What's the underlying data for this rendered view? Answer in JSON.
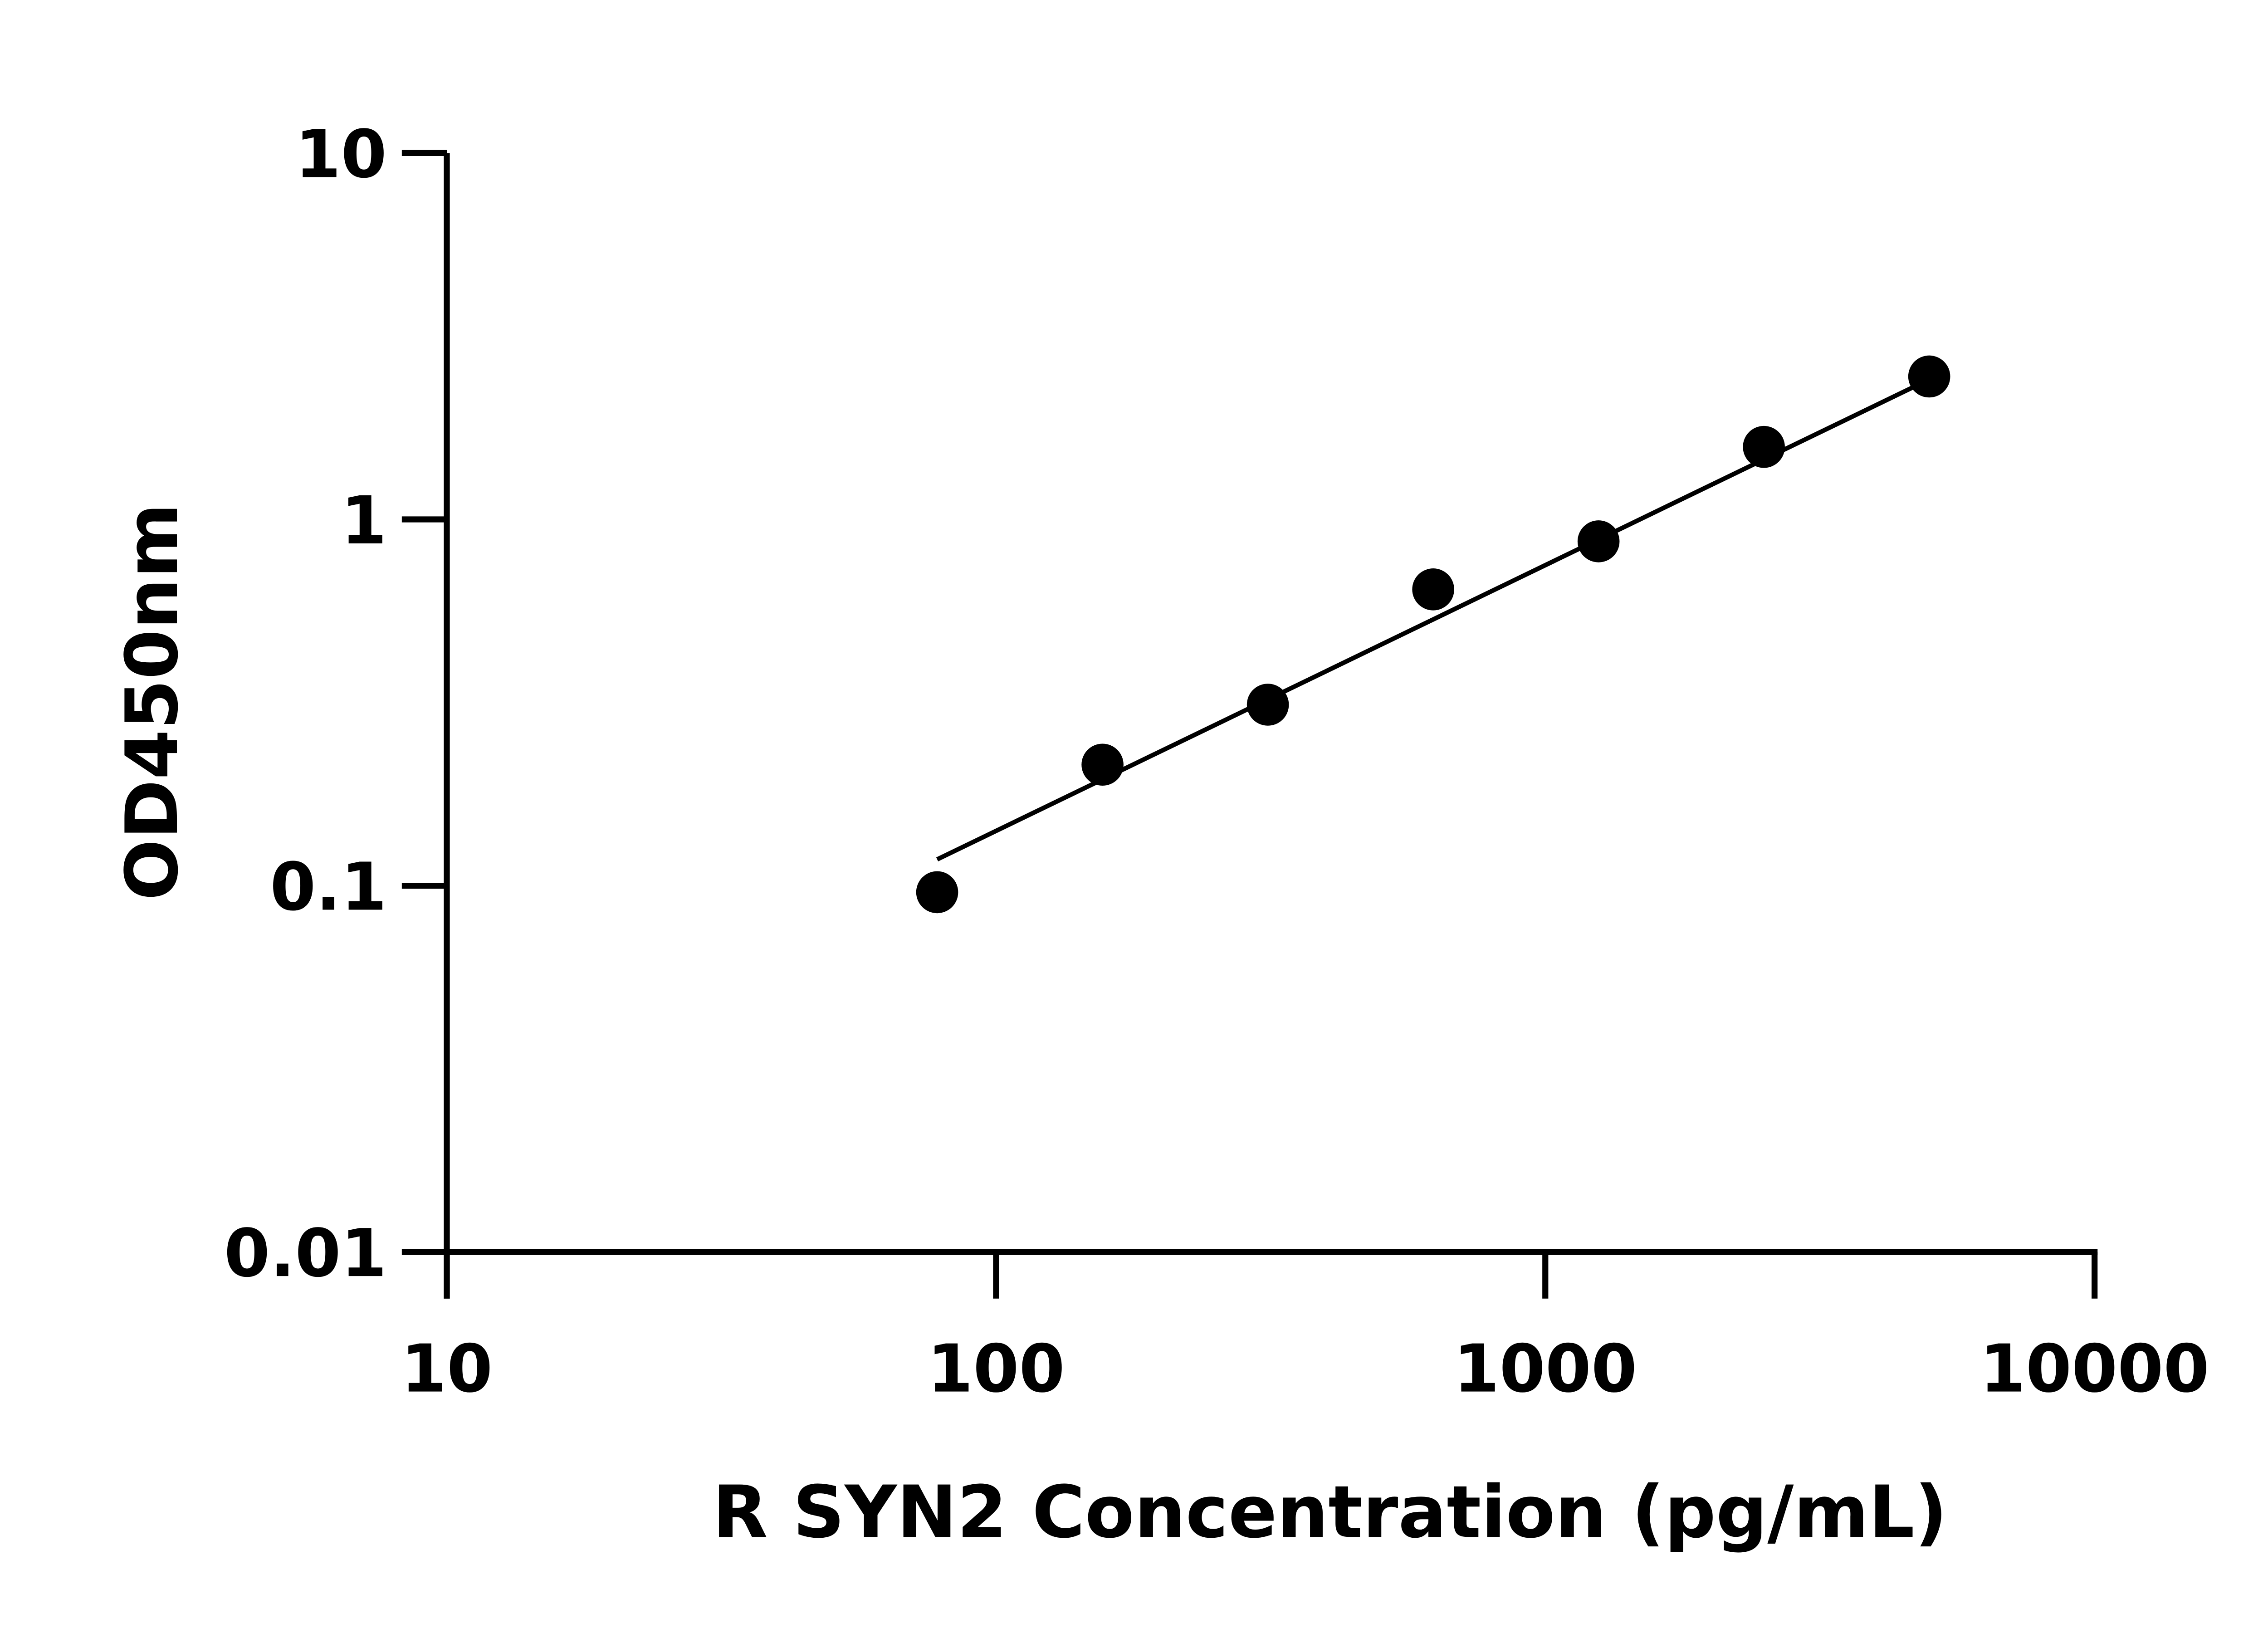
{
  "chart_data": {
    "type": "scatter",
    "title": "",
    "xlabel": "R SYN2 Concentration (pg/mL)",
    "ylabel": "OD450nm",
    "x_scale": "log",
    "y_scale": "log",
    "xlim": [
      10,
      10000
    ],
    "ylim": [
      0.01,
      10
    ],
    "x_ticks": [
      "10",
      "100",
      "1000",
      "10000"
    ],
    "y_ticks": [
      "0.01",
      "0.1",
      "1",
      "10"
    ],
    "grid": false,
    "legend": "none",
    "series": [
      {
        "x": [
          78.125,
          156.25,
          312.5,
          625,
          1250,
          2500,
          5000
        ],
        "y": [
          0.096,
          0.214,
          0.312,
          0.644,
          0.871,
          1.577,
          2.455
        ]
      }
    ],
    "fit_line": {
      "x": [
        78.125,
        5000
      ],
      "y": [
        0.118,
        2.41
      ]
    },
    "colors": {
      "points": "#000000",
      "axes": "#000000"
    }
  }
}
